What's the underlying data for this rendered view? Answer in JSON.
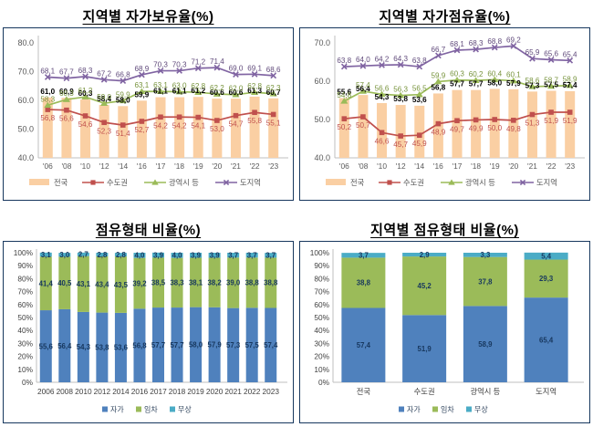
{
  "chart_data": [
    {
      "id": "regional-homeownership-rate",
      "type": "bar+line",
      "title": "지역별 자가보유율(%)",
      "categories": [
        "'06",
        "'08",
        "'10",
        "'12",
        "'14",
        "'16",
        "'17",
        "'18",
        "'19",
        "'20",
        "'21",
        "'22",
        "'23"
      ],
      "ylim": [
        40,
        80
      ],
      "yticks": [
        "80.0",
        "70.0",
        "60.0",
        "50.0",
        "40.0"
      ],
      "grid": false,
      "legend_position": "bottom",
      "series": [
        {
          "name": "전국",
          "type": "bar",
          "color": "#FACFA3",
          "label_color": "#000000",
          "label_weight": "bold",
          "values": [
            61.0,
            60.9,
            60.3,
            58.4,
            58.0,
            59.9,
            61.1,
            61.1,
            61.2,
            60.6,
            60.6,
            61.3,
            60.7
          ]
        },
        {
          "name": "수도권",
          "type": "line",
          "marker": "square",
          "color": "#C0504D",
          "label_color": "#C0504D",
          "label_pos": "below",
          "values": [
            56.8,
            56.6,
            54.6,
            52.3,
            51.4,
            52.7,
            54.2,
            54.2,
            54.1,
            53.0,
            54.7,
            55.8,
            55.1
          ]
        },
        {
          "name": "광역시 등",
          "type": "line",
          "marker": "triangle",
          "color": "#9BBB59",
          "label_color": "#77933C",
          "values": [
            58.3,
            60.3,
            61.2,
            59.0,
            59.9,
            63.1,
            63.1,
            63.0,
            62.8,
            62.2,
            62.0,
            62.8,
            62.3
          ]
        },
        {
          "name": "도지역",
          "type": "line",
          "marker": "x",
          "color": "#8064A2",
          "label_color": "#604A7B",
          "values": [
            68.1,
            67.7,
            68.3,
            67.2,
            66.8,
            68.9,
            70.3,
            70.3,
            71.2,
            71.4,
            69.0,
            69.1,
            68.6
          ]
        }
      ]
    },
    {
      "id": "regional-owner-occupancy-rate",
      "type": "bar+line",
      "title": "지역별 자가점유율(%)",
      "categories": [
        "'06",
        "'08",
        "'10",
        "'12",
        "'14",
        "'16",
        "'17",
        "'18",
        "'19",
        "'20",
        "'21",
        "'22",
        "'23"
      ],
      "ylim": [
        40,
        70
      ],
      "yticks": [
        "70.0",
        "60.0",
        "50.0",
        "40.0"
      ],
      "grid": false,
      "legend_position": "bottom",
      "series": [
        {
          "name": "전국",
          "type": "bar",
          "color": "#FACFA3",
          "label_color": "#000000",
          "label_weight": "bold",
          "values": [
            55.6,
            56.4,
            54.3,
            53.8,
            53.6,
            56.8,
            57.7,
            57.7,
            58.0,
            57.9,
            57.3,
            57.5,
            57.4
          ]
        },
        {
          "name": "수도권",
          "type": "line",
          "marker": "square",
          "color": "#C0504D",
          "label_color": "#C0504D",
          "label_pos": "below",
          "values": [
            50.2,
            50.7,
            46.6,
            45.7,
            45.9,
            48.9,
            49.7,
            49.9,
            50.0,
            49.8,
            51.3,
            51.9,
            51.9
          ]
        },
        {
          "name": "광역시 등",
          "type": "line",
          "marker": "triangle",
          "color": "#9BBB59",
          "label_color": "#77933C",
          "values": [
            54.8,
            57.4,
            56.6,
            56.3,
            56.5,
            59.9,
            60.3,
            60.2,
            60.4,
            60.1,
            58.6,
            58.7,
            58.9
          ]
        },
        {
          "name": "도지역",
          "type": "line",
          "marker": "x",
          "color": "#8064A2",
          "label_color": "#604A7B",
          "values": [
            63.8,
            64.0,
            64.2,
            64.3,
            63.8,
            66.7,
            68.1,
            68.3,
            68.8,
            69.2,
            65.9,
            65.6,
            65.4
          ]
        }
      ]
    },
    {
      "id": "tenure-type-ratio-by-year",
      "type": "stacked-bar",
      "title": "점유형태 비율(%)",
      "categories": [
        "2006",
        "2008",
        "2010",
        "2012",
        "2014",
        "2016",
        "2017",
        "2018",
        "2019",
        "2020",
        "2021",
        "2022",
        "2023"
      ],
      "ylim": [
        0,
        100
      ],
      "yticks": [
        "100%",
        "90%",
        "80%",
        "70%",
        "60%",
        "50%",
        "40%",
        "30%",
        "20%",
        "10%",
        "0%"
      ],
      "grid": false,
      "legend_position": "bottom",
      "series": [
        {
          "name": "자가",
          "color": "#4F81BD",
          "values": [
            55.6,
            56.4,
            54.3,
            53.8,
            53.6,
            56.8,
            57.7,
            57.7,
            58.0,
            57.9,
            57.3,
            57.5,
            57.4
          ]
        },
        {
          "name": "임차",
          "color": "#9BBB59",
          "values": [
            41.4,
            40.5,
            43.1,
            43.4,
            43.5,
            39.2,
            38.5,
            38.3,
            38.1,
            38.2,
            39.0,
            38.8,
            38.8
          ]
        },
        {
          "name": "무상",
          "color": "#4BACC6",
          "values": [
            3.1,
            3.0,
            2.7,
            2.8,
            2.8,
            4.0,
            3.9,
            4.0,
            3.9,
            3.9,
            3.7,
            3.7,
            3.7
          ]
        }
      ]
    },
    {
      "id": "tenure-type-ratio-by-region",
      "type": "stacked-bar",
      "title": "지역별 점유형태 비율(%)",
      "categories": [
        "전국",
        "수도권",
        "광역시 등",
        "도지역"
      ],
      "ylim": [
        0,
        100
      ],
      "yticks": [
        "100%",
        "90%",
        "80%",
        "70%",
        "60%",
        "50%",
        "40%",
        "30%",
        "20%",
        "10%",
        "0%"
      ],
      "grid": false,
      "legend_position": "bottom",
      "series": [
        {
          "name": "자가",
          "color": "#4F81BD",
          "values": [
            57.4,
            51.9,
            58.9,
            65.4
          ]
        },
        {
          "name": "임차",
          "color": "#9BBB59",
          "values": [
            38.8,
            45.2,
            37.8,
            29.3
          ]
        },
        {
          "name": "무상",
          "color": "#4BACC6",
          "values": [
            3.7,
            2.9,
            3.3,
            5.4
          ]
        }
      ]
    }
  ]
}
